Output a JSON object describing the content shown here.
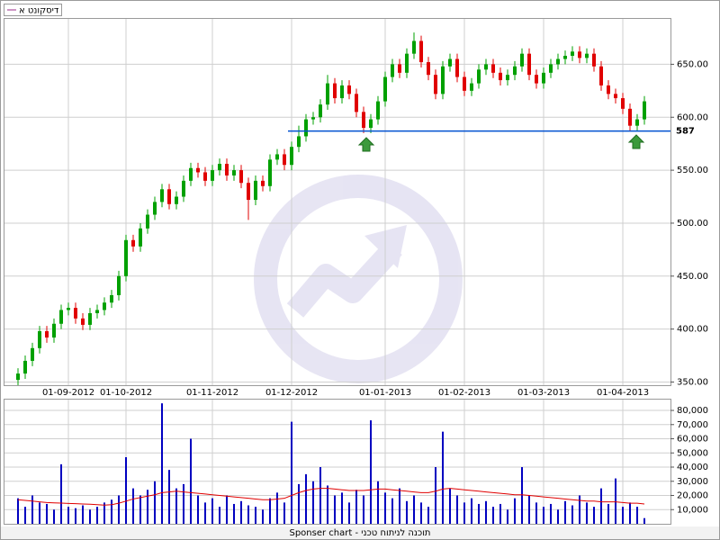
{
  "chart_data": [
    {
      "type": "candlestick",
      "name": "דיסקונט א",
      "up_color": "#00a000",
      "down_color": "#e00000",
      "categories": [
        null,
        null,
        null,
        null,
        null,
        null,
        null,
        "01-09-2012",
        null,
        null,
        null,
        null,
        null,
        null,
        null,
        "01-10-2012",
        null,
        null,
        null,
        null,
        null,
        null,
        null,
        null,
        null,
        null,
        null,
        "01-11-2012",
        null,
        null,
        null,
        null,
        null,
        null,
        null,
        null,
        null,
        null,
        "01-12-2012",
        null,
        null,
        null,
        null,
        null,
        null,
        null,
        null,
        null,
        null,
        null,
        null,
        "01-01-2013",
        null,
        null,
        null,
        null,
        null,
        null,
        null,
        null,
        null,
        null,
        "01-02-2013",
        null,
        null,
        null,
        null,
        null,
        null,
        null,
        null,
        null,
        null,
        "01-03-2013",
        null,
        null,
        null,
        null,
        null,
        null,
        null,
        null,
        null,
        null,
        "01-04-2013",
        null,
        null,
        null
      ],
      "open": [
        352,
        358,
        370,
        382,
        398,
        392,
        405,
        418,
        420,
        410,
        404,
        415,
        418,
        425,
        432,
        450,
        484,
        478,
        495,
        508,
        520,
        532,
        518,
        525,
        540,
        552,
        548,
        540,
        550,
        556,
        545,
        550,
        538,
        522,
        540,
        535,
        560,
        565,
        555,
        572,
        582,
        598,
        600,
        612,
        632,
        618,
        630,
        622,
        605,
        590,
        598,
        615,
        638,
        650,
        642,
        660,
        672,
        652,
        640,
        622,
        648,
        655,
        638,
        625,
        632,
        645,
        650,
        642,
        635,
        640,
        648,
        660,
        640,
        632,
        642,
        650,
        655,
        658,
        662,
        656,
        660,
        648,
        630,
        622,
        618,
        608,
        592,
        598
      ],
      "high": [
        363,
        375,
        387,
        403,
        403,
        410,
        423,
        425,
        425,
        415,
        420,
        423,
        430,
        437,
        455,
        489,
        489,
        500,
        513,
        525,
        537,
        537,
        530,
        545,
        557,
        557,
        553,
        555,
        561,
        561,
        555,
        555,
        543,
        545,
        545,
        565,
        570,
        570,
        577,
        592,
        603,
        605,
        617,
        640,
        637,
        635,
        635,
        627,
        610,
        603,
        620,
        643,
        655,
        655,
        665,
        680,
        677,
        657,
        645,
        653,
        660,
        660,
        643,
        637,
        650,
        655,
        655,
        647,
        645,
        653,
        665,
        665,
        645,
        647,
        655,
        660,
        663,
        667,
        667,
        665,
        665,
        653,
        635,
        627,
        623,
        613,
        603,
        620
      ],
      "low": [
        347,
        353,
        365,
        377,
        387,
        387,
        400,
        413,
        405,
        399,
        399,
        410,
        413,
        420,
        427,
        445,
        473,
        473,
        490,
        503,
        515,
        513,
        513,
        520,
        535,
        543,
        535,
        535,
        545,
        540,
        540,
        533,
        503,
        517,
        530,
        530,
        555,
        550,
        550,
        567,
        577,
        593,
        595,
        607,
        613,
        613,
        617,
        600,
        585,
        585,
        593,
        610,
        633,
        637,
        637,
        655,
        647,
        635,
        617,
        617,
        643,
        633,
        620,
        620,
        627,
        640,
        637,
        630,
        630,
        635,
        643,
        635,
        627,
        627,
        637,
        645,
        650,
        653,
        651,
        651,
        643,
        625,
        617,
        613,
        603,
        587,
        587,
        593
      ],
      "close": [
        358,
        370,
        382,
        398,
        392,
        405,
        418,
        420,
        410,
        404,
        415,
        418,
        425,
        432,
        450,
        484,
        478,
        495,
        508,
        520,
        532,
        518,
        525,
        540,
        552,
        548,
        540,
        550,
        556,
        545,
        550,
        538,
        522,
        540,
        535,
        560,
        565,
        555,
        572,
        582,
        598,
        600,
        612,
        632,
        618,
        630,
        622,
        605,
        590,
        598,
        615,
        638,
        650,
        642,
        660,
        672,
        652,
        640,
        622,
        648,
        655,
        638,
        625,
        632,
        645,
        650,
        642,
        635,
        640,
        648,
        660,
        640,
        632,
        642,
        650,
        655,
        658,
        662,
        656,
        660,
        648,
        630,
        622,
        618,
        608,
        592,
        598,
        615
      ],
      "ylim": [
        347,
        692
      ],
      "yticks": [
        {
          "value": 350,
          "label": "350.00"
        },
        {
          "value": 400,
          "label": "400.00"
        },
        {
          "value": 450,
          "label": "450.00"
        },
        {
          "value": 500,
          "label": "500.00"
        },
        {
          "value": 550,
          "label": "550.00"
        },
        {
          "value": 600,
          "label": "600.00"
        },
        {
          "value": 650,
          "label": "650.00"
        }
      ],
      "level": 587,
      "level_color": "#0050d0",
      "grid": true
    },
    {
      "type": "bar",
      "color": "#0000c0",
      "ma_color": "#e00000",
      "values": [
        18000,
        12000,
        20000,
        15000,
        14000,
        10000,
        42000,
        12000,
        11000,
        13000,
        10000,
        12000,
        15000,
        17000,
        20000,
        47000,
        25000,
        20000,
        24000,
        30000,
        85000,
        38000,
        25000,
        28000,
        60000,
        20000,
        15000,
        18000,
        12000,
        20000,
        14000,
        16000,
        13000,
        12000,
        10000,
        18000,
        22000,
        15000,
        72000,
        28000,
        35000,
        30000,
        40000,
        27000,
        20000,
        22000,
        15000,
        24000,
        20000,
        73000,
        30000,
        22000,
        18000,
        25000,
        16000,
        20000,
        15000,
        12000,
        40000,
        65000,
        25000,
        20000,
        15000,
        18000,
        14000,
        16000,
        12000,
        14000,
        10000,
        18000,
        40000,
        20000,
        15000,
        12000,
        14000,
        10000,
        16000,
        13000,
        20000,
        15000,
        12000,
        25000,
        14000,
        32000,
        12000,
        15000,
        12000,
        4000
      ],
      "ma": [
        17000,
        16500,
        16000,
        15500,
        15000,
        14800,
        14600,
        14400,
        14200,
        14000,
        13800,
        13500,
        13200,
        13500,
        14500,
        16000,
        17500,
        18500,
        19500,
        20500,
        22000,
        22500,
        23000,
        22500,
        22000,
        21500,
        21000,
        20500,
        20000,
        19500,
        19000,
        18500,
        18000,
        17500,
        17000,
        17000,
        17500,
        18000,
        20000,
        22000,
        23500,
        24500,
        25000,
        25000,
        24500,
        24000,
        23500,
        23500,
        23500,
        24000,
        24500,
        24500,
        24000,
        23500,
        23000,
        22500,
        22000,
        22000,
        23000,
        24500,
        25000,
        24500,
        24000,
        23500,
        23000,
        22500,
        22000,
        21500,
        21000,
        20500,
        20500,
        20000,
        19500,
        19000,
        18500,
        18000,
        17500,
        17000,
        16500,
        16000,
        16000,
        15500,
        15500,
        15500,
        15000,
        14500,
        14500,
        14000
      ],
      "ylim": [
        0,
        87000
      ],
      "yticks": [
        {
          "value": 10000,
          "label": "10,000"
        },
        {
          "value": 20000,
          "label": "20,000"
        },
        {
          "value": 30000,
          "label": "30,000"
        },
        {
          "value": 40000,
          "label": "40,000"
        },
        {
          "value": 50000,
          "label": "50,000"
        },
        {
          "value": 60000,
          "label": "60,000"
        },
        {
          "value": 70000,
          "label": "70,000"
        },
        {
          "value": 80000,
          "label": "80,000"
        }
      ],
      "grid": true
    }
  ],
  "footer": "Sponser chart - תוכנה לניתוח טכני"
}
